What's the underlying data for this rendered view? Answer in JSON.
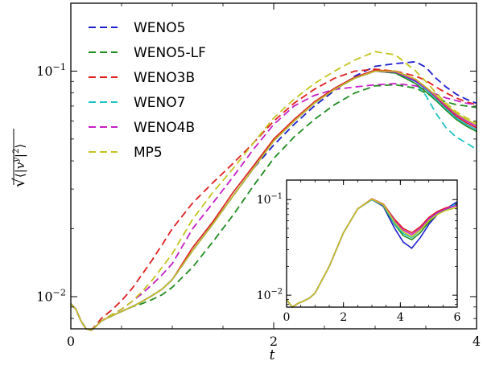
{
  "chart_data": [
    {
      "type": "line",
      "xlabel": "t",
      "ylabel": "sqrt(<|v^y|^2>)",
      "xlim": [
        0,
        4
      ],
      "ylim": [
        0.0072,
        0.2
      ],
      "yscale": "log",
      "xticks": [
        "0",
        "2",
        "4"
      ],
      "yticks": [
        {
          "value": 0.01,
          "label_base": "10",
          "label_exp": "−2"
        },
        {
          "value": 0.1,
          "label_base": "10",
          "label_exp": "−1"
        }
      ],
      "legend_position": "top-left",
      "series": [
        {
          "name": "WENO5",
          "color": "#1f1fd1",
          "x": [
            0,
            0.05,
            0.1,
            0.15,
            0.2,
            0.25,
            0.3,
            0.4,
            0.5,
            0.6,
            0.7,
            0.8,
            0.9,
            1.0,
            1.2,
            1.4,
            1.6,
            1.8,
            2.0,
            2.2,
            2.4,
            2.6,
            2.8,
            3.0,
            3.2,
            3.4,
            3.5,
            3.6,
            3.7,
            3.8,
            3.9,
            4.0
          ],
          "solid": [
            0.0093,
            0.0088,
            0.0078,
            0.0072,
            0.0071,
            0.0074,
            0.0078,
            0.0082,
            0.0086,
            0.009,
            0.0095,
            0.0101,
            0.0108,
            0.0119,
            0.016,
            0.021,
            0.028,
            0.037,
            0.049,
            0.06,
            0.072,
            0.083,
            0.093,
            0.1,
            0.099,
            0.09,
            0.083,
            0.075,
            0.068,
            0.062,
            0.058,
            0.055
          ],
          "dashed": [
            0.0093,
            0.0088,
            0.0078,
            0.0072,
            0.0071,
            0.0074,
            0.0078,
            0.0082,
            0.0086,
            0.009,
            0.0095,
            0.0101,
            0.0108,
            0.0119,
            0.016,
            0.021,
            0.028,
            0.037,
            0.047,
            0.058,
            0.07,
            0.082,
            0.095,
            0.105,
            0.108,
            0.11,
            0.104,
            0.093,
            0.085,
            0.079,
            0.075,
            0.072
          ]
        },
        {
          "name": "WENO5-LF",
          "color": "#1f8c1f",
          "x": [
            0,
            0.05,
            0.1,
            0.15,
            0.2,
            0.25,
            0.3,
            0.4,
            0.5,
            0.6,
            0.7,
            0.8,
            0.9,
            1.0,
            1.2,
            1.4,
            1.6,
            1.8,
            2.0,
            2.2,
            2.4,
            2.6,
            2.8,
            3.0,
            3.2,
            3.4,
            3.5,
            3.6,
            3.7,
            3.8,
            3.9,
            4.0
          ],
          "solid": [
            0.0093,
            0.0088,
            0.0078,
            0.0072,
            0.0071,
            0.0074,
            0.0078,
            0.0082,
            0.0086,
            0.009,
            0.0095,
            0.0101,
            0.0108,
            0.0119,
            0.016,
            0.021,
            0.028,
            0.037,
            0.049,
            0.06,
            0.072,
            0.083,
            0.093,
            0.1,
            0.098,
            0.088,
            0.081,
            0.074,
            0.067,
            0.061,
            0.057,
            0.054
          ],
          "dashed": [
            0.0093,
            0.0088,
            0.0078,
            0.0072,
            0.0071,
            0.0074,
            0.0078,
            0.0082,
            0.0086,
            0.009,
            0.0093,
            0.0097,
            0.0102,
            0.011,
            0.0135,
            0.0175,
            0.023,
            0.031,
            0.041,
            0.051,
            0.061,
            0.071,
            0.08,
            0.086,
            0.087,
            0.084,
            0.08,
            0.076,
            0.073,
            0.071,
            0.07,
            0.069
          ]
        },
        {
          "name": "WENO3B",
          "color": "#e01f1f",
          "x": [
            0,
            0.05,
            0.1,
            0.15,
            0.2,
            0.25,
            0.3,
            0.4,
            0.5,
            0.6,
            0.7,
            0.8,
            0.9,
            1.0,
            1.2,
            1.4,
            1.6,
            1.8,
            2.0,
            2.2,
            2.4,
            2.6,
            2.8,
            3.0,
            3.2,
            3.4,
            3.5,
            3.6,
            3.7,
            3.8,
            3.9,
            4.0
          ],
          "solid": [
            0.0093,
            0.0088,
            0.0078,
            0.0072,
            0.0071,
            0.0074,
            0.0078,
            0.0082,
            0.0086,
            0.009,
            0.0095,
            0.0101,
            0.0108,
            0.0119,
            0.0165,
            0.0215,
            0.029,
            0.038,
            0.05,
            0.061,
            0.073,
            0.084,
            0.094,
            0.101,
            0.1,
            0.092,
            0.084,
            0.076,
            0.069,
            0.063,
            0.059,
            0.056
          ],
          "dashed": [
            0.0093,
            0.0088,
            0.0078,
            0.0072,
            0.0071,
            0.0075,
            0.008,
            0.0087,
            0.0096,
            0.0108,
            0.0125,
            0.0145,
            0.017,
            0.02,
            0.026,
            0.032,
            0.039,
            0.048,
            0.06,
            0.072,
            0.083,
            0.093,
            0.1,
            0.102,
            0.1,
            0.095,
            0.091,
            0.085,
            0.08,
            0.076,
            0.073,
            0.071
          ]
        },
        {
          "name": "WENO7",
          "color": "#1fc4c4",
          "x": [
            0,
            0.05,
            0.1,
            0.15,
            0.2,
            0.25,
            0.3,
            0.4,
            0.5,
            0.6,
            0.7,
            0.8,
            0.9,
            1.0,
            1.2,
            1.4,
            1.6,
            1.8,
            2.0,
            2.2,
            2.4,
            2.6,
            2.8,
            3.0,
            3.2,
            3.4,
            3.5,
            3.6,
            3.7,
            3.8,
            3.9,
            4.0
          ],
          "solid": [
            0.0093,
            0.0088,
            0.0078,
            0.0072,
            0.0071,
            0.0074,
            0.0078,
            0.0082,
            0.0086,
            0.009,
            0.0095,
            0.0101,
            0.0108,
            0.0119,
            0.016,
            0.021,
            0.028,
            0.037,
            0.049,
            0.06,
            0.072,
            0.083,
            0.093,
            0.1,
            0.099,
            0.091,
            0.083,
            0.075,
            0.068,
            0.062,
            0.058,
            0.055
          ],
          "dashed": [
            0.0093,
            0.0088,
            0.0078,
            0.0072,
            0.0071,
            0.0074,
            0.0078,
            0.0082,
            0.0086,
            0.009,
            0.0095,
            0.0101,
            0.0108,
            0.0119,
            0.016,
            0.021,
            0.028,
            0.037,
            0.049,
            0.06,
            0.072,
            0.083,
            0.093,
            0.1,
            0.098,
            0.088,
            0.078,
            0.065,
            0.056,
            0.051,
            0.048,
            0.045
          ]
        },
        {
          "name": "WENO4B",
          "color": "#c41fc4",
          "x": [
            0,
            0.05,
            0.1,
            0.15,
            0.2,
            0.25,
            0.3,
            0.4,
            0.5,
            0.6,
            0.7,
            0.8,
            0.9,
            1.0,
            1.2,
            1.4,
            1.6,
            1.8,
            2.0,
            2.2,
            2.4,
            2.6,
            2.8,
            3.0,
            3.2,
            3.4,
            3.5,
            3.6,
            3.7,
            3.8,
            3.9,
            4.0
          ],
          "solid": [
            0.0093,
            0.0088,
            0.0078,
            0.0072,
            0.0071,
            0.0074,
            0.0078,
            0.0082,
            0.0086,
            0.009,
            0.0095,
            0.0101,
            0.0108,
            0.0119,
            0.016,
            0.021,
            0.028,
            0.037,
            0.049,
            0.06,
            0.072,
            0.083,
            0.093,
            0.1,
            0.099,
            0.091,
            0.084,
            0.077,
            0.07,
            0.064,
            0.06,
            0.057
          ],
          "dashed": [
            0.0093,
            0.0088,
            0.0078,
            0.0072,
            0.0071,
            0.0074,
            0.0078,
            0.0083,
            0.0088,
            0.0095,
            0.0103,
            0.0113,
            0.0125,
            0.014,
            0.02,
            0.026,
            0.034,
            0.045,
            0.058,
            0.07,
            0.078,
            0.083,
            0.085,
            0.087,
            0.088,
            0.086,
            0.083,
            0.079,
            0.076,
            0.074,
            0.072,
            0.071
          ]
        },
        {
          "name": "MP5",
          "color": "#c4c41f",
          "x": [
            0,
            0.05,
            0.1,
            0.15,
            0.2,
            0.25,
            0.3,
            0.4,
            0.5,
            0.6,
            0.7,
            0.8,
            0.9,
            1.0,
            1.2,
            1.4,
            1.6,
            1.8,
            2.0,
            2.2,
            2.4,
            2.6,
            2.8,
            3.0,
            3.2,
            3.4,
            3.5,
            3.6,
            3.7,
            3.8,
            3.9,
            4.0
          ],
          "solid": [
            0.0093,
            0.0088,
            0.0078,
            0.0072,
            0.0071,
            0.0074,
            0.0078,
            0.0082,
            0.0086,
            0.009,
            0.0095,
            0.0101,
            0.0108,
            0.0119,
            0.016,
            0.021,
            0.028,
            0.037,
            0.049,
            0.06,
            0.072,
            0.083,
            0.093,
            0.1,
            0.1,
            0.092,
            0.085,
            0.078,
            0.071,
            0.065,
            0.061,
            0.058
          ],
          "dashed": [
            0.0093,
            0.0088,
            0.0078,
            0.0072,
            0.0071,
            0.0074,
            0.0078,
            0.0083,
            0.0088,
            0.0095,
            0.0105,
            0.0118,
            0.0135,
            0.0155,
            0.022,
            0.029,
            0.037,
            0.048,
            0.062,
            0.075,
            0.088,
            0.1,
            0.112,
            0.122,
            0.118,
            0.1,
            0.09,
            0.08,
            0.072,
            0.066,
            0.062,
            0.059
          ]
        }
      ]
    },
    {
      "type": "line",
      "role": "inset",
      "xlabel": "",
      "ylabel": "",
      "xlim": [
        0,
        6
      ],
      "ylim": [
        0.0075,
        0.16
      ],
      "yscale": "log",
      "xticks": [
        "0",
        "2",
        "4",
        "6"
      ],
      "yticks": [
        {
          "value": 0.01,
          "label_base": "10",
          "label_exp": "−2"
        },
        {
          "value": 0.1,
          "label_base": "10",
          "label_exp": "−1"
        }
      ],
      "series": [
        {
          "name": "WENO5",
          "color": "#1f1fd1",
          "x": [
            0,
            0.2,
            0.4,
            0.6,
            0.8,
            1.0,
            1.5,
            2.0,
            2.5,
            3.0,
            3.4,
            3.8,
            4.1,
            4.4,
            4.7,
            5.0,
            5.3,
            5.6,
            6.0
          ],
          "y": [
            0.009,
            0.0075,
            0.0082,
            0.0087,
            0.0093,
            0.0105,
            0.02,
            0.045,
            0.08,
            0.1,
            0.085,
            0.05,
            0.036,
            0.031,
            0.04,
            0.055,
            0.07,
            0.08,
            0.095
          ]
        },
        {
          "name": "WENO5-LF",
          "color": "#1f8c1f",
          "x": [
            0,
            0.2,
            0.4,
            0.6,
            0.8,
            1.0,
            1.5,
            2.0,
            2.5,
            3.0,
            3.4,
            3.8,
            4.1,
            4.4,
            4.7,
            5.0,
            5.3,
            5.6,
            6.0
          ],
          "y": [
            0.009,
            0.0075,
            0.0082,
            0.0087,
            0.0093,
            0.0105,
            0.02,
            0.045,
            0.08,
            0.1,
            0.086,
            0.055,
            0.042,
            0.038,
            0.045,
            0.058,
            0.07,
            0.078,
            0.09
          ]
        },
        {
          "name": "WENO3B",
          "color": "#e01f1f",
          "x": [
            0,
            0.2,
            0.4,
            0.6,
            0.8,
            1.0,
            1.5,
            2.0,
            2.5,
            3.0,
            3.4,
            3.8,
            4.1,
            4.4,
            4.7,
            5.0,
            5.3,
            5.6,
            6.0
          ],
          "y": [
            0.009,
            0.0075,
            0.0082,
            0.0087,
            0.0093,
            0.0105,
            0.02,
            0.045,
            0.08,
            0.102,
            0.09,
            0.062,
            0.05,
            0.045,
            0.052,
            0.065,
            0.075,
            0.082,
            0.088
          ]
        },
        {
          "name": "WENO7",
          "color": "#1fc4c4",
          "x": [
            0,
            0.2,
            0.4,
            0.6,
            0.8,
            1.0,
            1.5,
            2.0,
            2.5,
            3.0,
            3.4,
            3.8,
            4.1,
            4.4,
            4.7,
            5.0,
            5.3,
            5.6,
            6.0
          ],
          "y": [
            0.009,
            0.0075,
            0.0082,
            0.0087,
            0.0093,
            0.0105,
            0.02,
            0.045,
            0.08,
            0.1,
            0.087,
            0.056,
            0.044,
            0.04,
            0.048,
            0.062,
            0.072,
            0.078,
            0.092
          ]
        },
        {
          "name": "WENO4B",
          "color": "#c41fc4",
          "x": [
            0,
            0.2,
            0.4,
            0.6,
            0.8,
            1.0,
            1.5,
            2.0,
            2.5,
            3.0,
            3.4,
            3.8,
            4.1,
            4.4,
            4.7,
            5.0,
            5.3,
            5.6,
            6.0
          ],
          "y": [
            0.009,
            0.0075,
            0.0082,
            0.0087,
            0.0093,
            0.0105,
            0.02,
            0.045,
            0.08,
            0.101,
            0.088,
            0.06,
            0.048,
            0.043,
            0.05,
            0.063,
            0.073,
            0.08,
            0.087
          ]
        },
        {
          "name": "MP5",
          "color": "#c4c41f",
          "x": [
            0,
            0.2,
            0.4,
            0.6,
            0.8,
            1.0,
            1.5,
            2.0,
            2.5,
            3.0,
            3.4,
            3.8,
            4.1,
            4.4,
            4.7,
            5.0,
            5.3,
            5.6,
            6.0
          ],
          "y": [
            0.009,
            0.0075,
            0.0082,
            0.0087,
            0.0093,
            0.0105,
            0.02,
            0.045,
            0.08,
            0.101,
            0.089,
            0.058,
            0.046,
            0.041,
            0.048,
            0.06,
            0.07,
            0.077,
            0.083
          ]
        }
      ]
    }
  ]
}
